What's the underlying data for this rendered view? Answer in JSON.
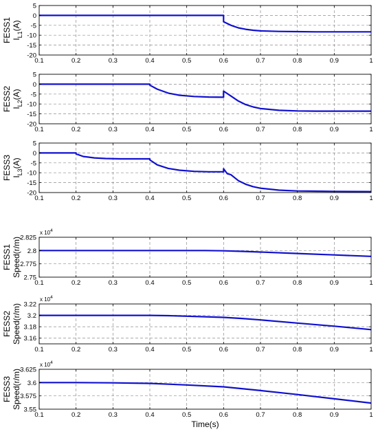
{
  "colors": {
    "series": "#1010d0",
    "grid": "#8c8c8c",
    "axis": "#000000",
    "background": "#ffffff"
  },
  "chart_data": [
    {
      "type": "line",
      "ylabel_lines": [
        "FESS1",
        "I",
        "L1",
        "(A)"
      ],
      "xlim": [
        0.1,
        1.0
      ],
      "ylim": [
        -20,
        5
      ],
      "xticks": [
        "0.1",
        "0.2",
        "0.3",
        "0.4",
        "0.5",
        "0.6",
        "0.7",
        "0.8",
        "0.9",
        "1"
      ],
      "yticks": [
        "5",
        "0",
        "-5",
        "-10",
        "-15",
        "-20"
      ],
      "series": [
        {
          "x": [
            0.1,
            0.6,
            0.6,
            0.62,
            0.64,
            0.66,
            0.68,
            0.7,
            0.75,
            0.8,
            0.85,
            0.9,
            1.0
          ],
          "y": [
            0,
            0,
            -3.2,
            -5,
            -6.3,
            -7,
            -7.5,
            -7.8,
            -8.1,
            -8.2,
            -8.3,
            -8.3,
            -8.3
          ]
        }
      ]
    },
    {
      "type": "line",
      "ylabel_lines": [
        "FESS2",
        "I",
        "L2",
        "(A)"
      ],
      "xlim": [
        0.1,
        1.0
      ],
      "ylim": [
        -20,
        5
      ],
      "xticks": [
        "0.1",
        "0.2",
        "0.3",
        "0.4",
        "0.5",
        "0.6",
        "0.7",
        "0.8",
        "0.9",
        "1"
      ],
      "yticks": [
        "5",
        "0",
        "-5",
        "-10",
        "-15",
        "-20"
      ],
      "series": [
        {
          "x": [
            0.1,
            0.4,
            0.4,
            0.42,
            0.45,
            0.48,
            0.52,
            0.56,
            0.6,
            0.6,
            0.62,
            0.64,
            0.66,
            0.68,
            0.7,
            0.75,
            0.8,
            0.85,
            0.9,
            1.0
          ],
          "y": [
            0,
            0,
            -0.5,
            -2.5,
            -4.5,
            -5.6,
            -6.2,
            -6.5,
            -6.6,
            -3.5,
            -6,
            -8.5,
            -10.3,
            -11.5,
            -12.3,
            -13.2,
            -13.5,
            -13.6,
            -13.6,
            -13.6
          ]
        }
      ]
    },
    {
      "type": "line",
      "ylabel_lines": [
        "FESS3",
        "I",
        "L3",
        "(A)"
      ],
      "xlim": [
        0.1,
        1.0
      ],
      "ylim": [
        -20,
        5
      ],
      "xticks": [
        "0.1",
        "0.2",
        "0.3",
        "0.4",
        "0.5",
        "0.6",
        "0.7",
        "0.8",
        "0.9",
        "1"
      ],
      "yticks": [
        "5",
        "0",
        "-5",
        "-10",
        "-15",
        "-20"
      ],
      "series": [
        {
          "x": [
            0.1,
            0.2,
            0.2,
            0.22,
            0.25,
            0.28,
            0.32,
            0.36,
            0.4,
            0.4,
            0.42,
            0.45,
            0.48,
            0.52,
            0.56,
            0.6,
            0.6,
            0.61,
            0.62,
            0.64,
            0.66,
            0.68,
            0.7,
            0.75,
            0.8,
            0.85,
            0.9,
            1.0
          ],
          "y": [
            0,
            0,
            -0.5,
            -1.8,
            -2.5,
            -2.8,
            -3,
            -3,
            -3,
            -3.5,
            -6,
            -7.8,
            -8.7,
            -9.3,
            -9.5,
            -9.5,
            -8,
            -10.5,
            -11,
            -14,
            -15.8,
            -17,
            -17.8,
            -18.8,
            -19.2,
            -19.3,
            -19.4,
            -19.5
          ]
        }
      ]
    },
    {
      "type": "line",
      "ylabel_lines": [
        "FESS1",
        "Speed(r/m)"
      ],
      "multiplier": "x 10",
      "multiplier_exp": "4",
      "xlim": [
        0.1,
        1.0
      ],
      "ylim": [
        2.75,
        2.825
      ],
      "xticks": [
        "0.1",
        "0.2",
        "0.3",
        "0.4",
        "0.5",
        "0.6",
        "0.7",
        "0.8",
        "0.9",
        "1"
      ],
      "yticks": [
        "2.825",
        "2.8",
        "2.775",
        "2.75"
      ],
      "series": [
        {
          "x": [
            0.1,
            0.55,
            0.6,
            0.65,
            0.7,
            0.8,
            0.9,
            1.0
          ],
          "y": [
            2.8,
            2.8,
            2.7995,
            2.7985,
            2.7972,
            2.7945,
            2.7918,
            2.789
          ]
        }
      ]
    },
    {
      "type": "line",
      "ylabel_lines": [
        "FESS2",
        "Speed(r/m)"
      ],
      "multiplier": "x 10",
      "multiplier_exp": "4",
      "xlim": [
        0.1,
        1.0
      ],
      "ylim": [
        3.15,
        3.22
      ],
      "xticks": [
        "0.1",
        "0.2",
        "0.3",
        "0.4",
        "0.5",
        "0.6",
        "0.7",
        "0.8",
        "0.9",
        "1"
      ],
      "yticks": [
        "3.22",
        "3.2",
        "3.18",
        "3.16"
      ],
      "series": [
        {
          "x": [
            0.1,
            0.4,
            0.45,
            0.5,
            0.55,
            0.6,
            0.65,
            0.7,
            0.8,
            0.9,
            1.0
          ],
          "y": [
            3.2,
            3.2,
            3.1995,
            3.1985,
            3.1975,
            3.1965,
            3.1945,
            3.192,
            3.1865,
            3.181,
            3.175
          ]
        }
      ]
    },
    {
      "type": "line",
      "ylabel_lines": [
        "FESS3",
        "Speed(r/m)"
      ],
      "multiplier": "x 10",
      "multiplier_exp": "4",
      "xlabel": "Time(s)",
      "xlim": [
        0.1,
        1.0
      ],
      "ylim": [
        3.55,
        3.625
      ],
      "xticks": [
        "0.1",
        "0.2",
        "0.3",
        "0.4",
        "0.5",
        "0.6",
        "0.7",
        "0.8",
        "0.9",
        "1"
      ],
      "yticks": [
        "3.625",
        "3.6",
        "3.575",
        "3.55"
      ],
      "series": [
        {
          "x": [
            0.1,
            0.2,
            0.3,
            0.4,
            0.5,
            0.6,
            0.7,
            0.8,
            0.9,
            1.0
          ],
          "y": [
            3.6,
            3.6,
            3.5995,
            3.5985,
            3.5955,
            3.592,
            3.585,
            3.5775,
            3.5695,
            3.5615
          ]
        }
      ]
    }
  ]
}
